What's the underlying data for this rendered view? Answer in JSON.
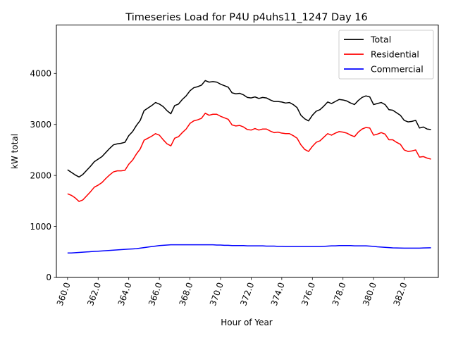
{
  "chart_data": {
    "type": "line",
    "title": "Timeseries Load for P4U p4uhs11_1247  Day 16",
    "xlabel": "Hour of Year",
    "ylabel": "kW total",
    "xlim": [
      359.27,
      384.23
    ],
    "ylim": [
      0,
      4950
    ],
    "xticks": [
      360,
      362,
      364,
      366,
      368,
      370,
      372,
      374,
      376,
      378,
      380,
      382
    ],
    "xtick_labels": [
      "360.0",
      "362.0",
      "364.0",
      "366.0",
      "368.0",
      "370.0",
      "372.0",
      "374.0",
      "376.0",
      "378.0",
      "380.0",
      "382.0"
    ],
    "yticks": [
      0,
      1000,
      2000,
      3000,
      4000
    ],
    "ytick_labels": [
      "0",
      "1000",
      "2000",
      "3000",
      "4000"
    ],
    "grid": false,
    "legend_position": "top-right",
    "x_start": 360,
    "x_step": 0.25,
    "series": [
      {
        "name": "Total",
        "color": "#000000",
        "values": [
          2110,
          2060,
          2010,
          1970,
          2020,
          2100,
          2180,
          2270,
          2320,
          2370,
          2450,
          2530,
          2600,
          2620,
          2630,
          2650,
          2780,
          2860,
          2980,
          3080,
          3270,
          3320,
          3370,
          3430,
          3400,
          3350,
          3270,
          3210,
          3370,
          3400,
          3490,
          3560,
          3660,
          3720,
          3740,
          3770,
          3860,
          3830,
          3840,
          3830,
          3790,
          3760,
          3730,
          3620,
          3600,
          3610,
          3580,
          3530,
          3520,
          3540,
          3510,
          3530,
          3520,
          3480,
          3450,
          3450,
          3440,
          3420,
          3430,
          3390,
          3330,
          3180,
          3110,
          3070,
          3180,
          3260,
          3290,
          3360,
          3440,
          3410,
          3450,
          3490,
          3480,
          3460,
          3420,
          3390,
          3470,
          3530,
          3560,
          3540,
          3390,
          3410,
          3430,
          3390,
          3290,
          3280,
          3230,
          3180,
          3080,
          3050,
          3060,
          3080,
          2930,
          2950,
          2910,
          2900
        ]
      },
      {
        "name": "Residential",
        "color": "#ff0000",
        "values": [
          1640,
          1610,
          1560,
          1490,
          1520,
          1600,
          1680,
          1770,
          1810,
          1860,
          1940,
          2010,
          2070,
          2090,
          2090,
          2100,
          2220,
          2300,
          2420,
          2520,
          2690,
          2730,
          2770,
          2820,
          2790,
          2700,
          2620,
          2580,
          2730,
          2760,
          2840,
          2910,
          3020,
          3070,
          3090,
          3120,
          3220,
          3180,
          3200,
          3200,
          3160,
          3130,
          3100,
          2990,
          2970,
          2980,
          2950,
          2900,
          2890,
          2920,
          2890,
          2910,
          2910,
          2870,
          2840,
          2850,
          2830,
          2820,
          2820,
          2780,
          2730,
          2600,
          2510,
          2470,
          2570,
          2650,
          2680,
          2750,
          2820,
          2790,
          2830,
          2860,
          2850,
          2830,
          2790,
          2760,
          2850,
          2910,
          2940,
          2930,
          2790,
          2810,
          2840,
          2810,
          2700,
          2700,
          2650,
          2610,
          2500,
          2470,
          2480,
          2500,
          2360,
          2370,
          2340,
          2320
        ]
      },
      {
        "name": "Commercial",
        "color": "#0000ff",
        "values": [
          480,
          480,
          485,
          490,
          495,
          500,
          505,
          510,
          515,
          520,
          525,
          530,
          535,
          540,
          545,
          550,
          555,
          560,
          565,
          575,
          585,
          595,
          605,
          615,
          625,
          630,
          635,
          640,
          640,
          640,
          640,
          640,
          640,
          640,
          640,
          640,
          640,
          640,
          640,
          635,
          635,
          630,
          630,
          625,
          625,
          625,
          625,
          620,
          620,
          620,
          620,
          620,
          615,
          615,
          615,
          610,
          610,
          605,
          605,
          605,
          605,
          605,
          605,
          605,
          605,
          605,
          605,
          610,
          615,
          620,
          620,
          625,
          625,
          625,
          625,
          620,
          620,
          620,
          620,
          615,
          610,
          600,
          595,
          590,
          585,
          580,
          578,
          576,
          575,
          575,
          575,
          575,
          575,
          578,
          580,
          582
        ]
      }
    ]
  }
}
